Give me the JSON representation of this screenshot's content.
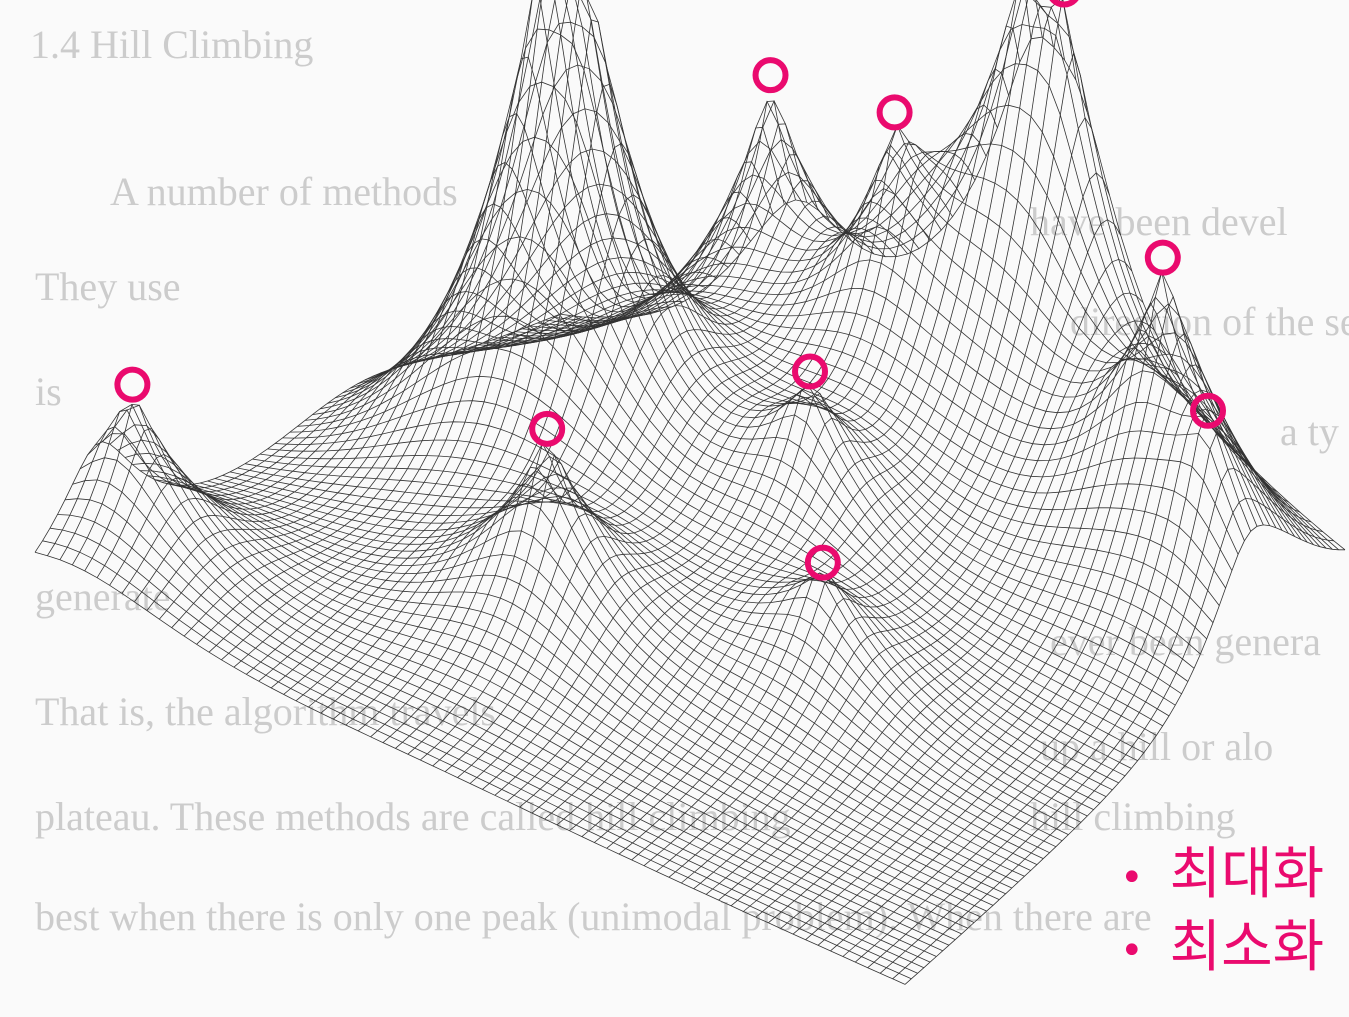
{
  "background_text": {
    "heading": "1.4   Hill Climbing",
    "lines": [
      "A number of methods",
      "have been devel",
      "They use",
      "direction of the se",
      "is",
      "a ty",
      "generate",
      "ever been genera",
      "That is, the algorithm travels",
      "up a hill or alo",
      "plateau. These methods are called hill climbing",
      "hill climbing",
      "best when there is only one peak (unimodal problem). When there are"
    ]
  },
  "bullets": [
    "최대화",
    "최소화"
  ]
}
